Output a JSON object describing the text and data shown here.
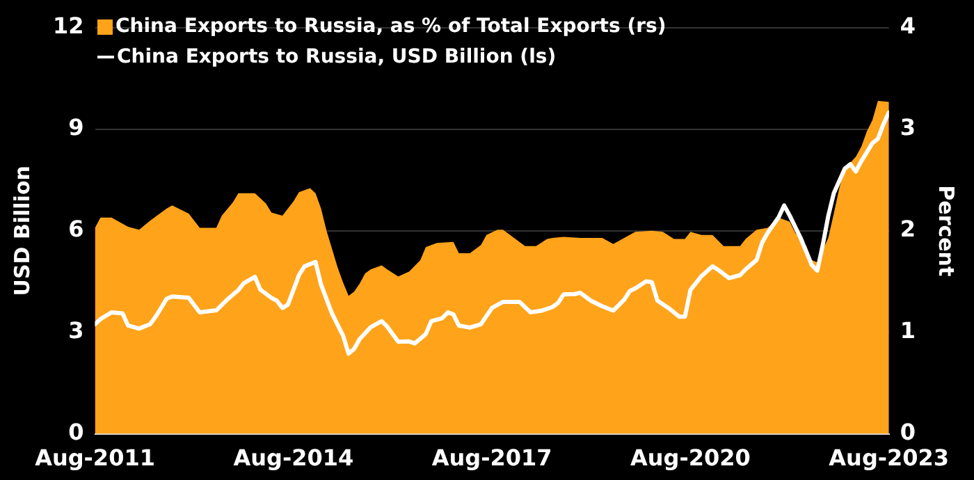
{
  "chart_data": {
    "type": "line",
    "xlim": [
      "2011-08",
      "2023-08"
    ],
    "xticks": [
      {
        "value": "2011-08",
        "label": "Aug-2011"
      },
      {
        "value": "2014-08",
        "label": "Aug-2014"
      },
      {
        "value": "2017-08",
        "label": "Aug-2017"
      },
      {
        "value": "2020-08",
        "label": "Aug-2020"
      },
      {
        "value": "2023-08",
        "label": "Aug-2023"
      }
    ],
    "ylabel": "USD Billion",
    "y2label": "Percent",
    "ylim": [
      0,
      12
    ],
    "yticks": [
      0,
      3,
      6,
      9,
      12
    ],
    "y2lim": [
      0,
      4
    ],
    "y2ticks": [
      0,
      1,
      2,
      3,
      4
    ],
    "grid": "y",
    "legend": "top left",
    "marker": "none",
    "series": [
      {
        "name": "China Exports to Russia, as % of Total Exports (rs)",
        "type": "area",
        "axis": "y2",
        "color": "#ffa31a",
        "x": [
          "2011-08",
          "2011-09",
          "2011-11",
          "2012-02",
          "2012-04",
          "2012-06",
          "2012-09",
          "2012-10",
          "2013-01",
          "2013-03",
          "2013-06",
          "2013-07",
          "2013-09",
          "2013-10",
          "2014-01",
          "2014-03",
          "2014-04",
          "2014-06",
          "2014-08",
          "2014-09",
          "2014-11",
          "2014-12",
          "2015-01",
          "2015-02",
          "2015-03",
          "2015-04",
          "2015-05",
          "2015-06",
          "2015-07",
          "2015-08",
          "2015-09",
          "2015-10",
          "2015-12",
          "2016-01",
          "2016-03",
          "2016-05",
          "2016-07",
          "2016-08",
          "2016-10",
          "2017-01",
          "2017-02",
          "2017-04",
          "2017-06",
          "2017-07",
          "2017-09",
          "2017-10",
          "2017-12",
          "2018-02",
          "2018-04",
          "2018-06",
          "2018-07",
          "2018-09",
          "2018-12",
          "2019-04",
          "2019-06",
          "2019-08",
          "2019-10",
          "2020-01",
          "2020-03",
          "2020-05",
          "2020-07",
          "2020-08",
          "2020-10",
          "2020-12",
          "2021-02",
          "2021-05",
          "2021-06",
          "2021-08",
          "2021-10",
          "2021-12",
          "2022-02",
          "2022-03",
          "2022-05",
          "2022-06",
          "2022-07",
          "2022-09",
          "2022-10",
          "2022-11",
          "2022-12",
          "2023-02",
          "2023-03",
          "2023-04",
          "2023-05",
          "2023-06",
          "2023-08"
        ],
        "values": [
          2.03,
          2.13,
          2.13,
          2.04,
          2.01,
          2.1,
          2.22,
          2.25,
          2.17,
          2.03,
          2.03,
          2.15,
          2.28,
          2.37,
          2.37,
          2.27,
          2.18,
          2.15,
          2.29,
          2.38,
          2.42,
          2.37,
          2.22,
          2.0,
          1.82,
          1.64,
          1.49,
          1.36,
          1.4,
          1.48,
          1.58,
          1.62,
          1.66,
          1.62,
          1.55,
          1.6,
          1.71,
          1.84,
          1.88,
          1.89,
          1.78,
          1.78,
          1.86,
          1.96,
          2.01,
          2.01,
          1.93,
          1.85,
          1.85,
          1.92,
          1.93,
          1.94,
          1.93,
          1.93,
          1.87,
          1.93,
          1.99,
          2.0,
          1.99,
          1.92,
          1.92,
          1.99,
          1.96,
          1.96,
          1.85,
          1.85,
          1.92,
          2.01,
          2.03,
          2.13,
          2.09,
          1.98,
          1.85,
          1.71,
          1.69,
          1.93,
          2.17,
          2.42,
          2.61,
          2.73,
          2.83,
          2.98,
          3.09,
          3.28,
          3.27
        ]
      },
      {
        "name": "China Exports to Russia, USD Billion (ls)",
        "type": "line",
        "color": "#ffffff",
        "x": [
          "2011-08",
          "2011-09",
          "2011-11",
          "2012-01",
          "2012-02",
          "2012-04",
          "2012-06",
          "2012-07",
          "2012-09",
          "2012-10",
          "2013-01",
          "2013-03",
          "2013-06",
          "2013-08",
          "2013-10",
          "2013-11",
          "2014-01",
          "2014-02",
          "2014-04",
          "2014-05",
          "2014-06",
          "2014-07",
          "2014-09",
          "2014-10",
          "2014-12",
          "2015-01",
          "2015-03",
          "2015-05",
          "2015-06",
          "2015-07",
          "2015-08",
          "2015-10",
          "2015-12",
          "2016-01",
          "2016-03",
          "2016-05",
          "2016-06",
          "2016-08",
          "2016-09",
          "2016-11",
          "2016-12",
          "2017-01",
          "2017-02",
          "2017-04",
          "2017-06",
          "2017-08",
          "2017-10",
          "2018-01",
          "2018-03",
          "2018-05",
          "2018-07",
          "2018-08",
          "2018-09",
          "2018-11",
          "2018-12",
          "2019-02",
          "2019-04",
          "2019-06",
          "2019-08",
          "2019-09",
          "2019-10",
          "2019-12",
          "2020-01",
          "2020-02",
          "2020-04",
          "2020-06",
          "2020-07",
          "2020-08",
          "2020-10",
          "2020-12",
          "2021-01",
          "2021-03",
          "2021-05",
          "2021-06",
          "2021-08",
          "2021-09",
          "2021-10",
          "2021-12",
          "2022-01",
          "2022-02",
          "2022-04",
          "2022-06",
          "2022-07",
          "2022-08",
          "2022-09",
          "2022-10",
          "2022-12",
          "2023-01",
          "2023-02",
          "2023-03",
          "2023-05",
          "2023-06",
          "2023-07",
          "2023-08"
        ],
        "values": [
          3.24,
          3.39,
          3.59,
          3.56,
          3.2,
          3.11,
          3.24,
          3.46,
          3.99,
          4.06,
          4.02,
          3.59,
          3.65,
          3.97,
          4.25,
          4.45,
          4.64,
          4.26,
          4.02,
          3.93,
          3.72,
          3.82,
          4.69,
          4.95,
          5.08,
          4.41,
          3.55,
          2.9,
          2.37,
          2.51,
          2.8,
          3.15,
          3.33,
          3.17,
          2.72,
          2.73,
          2.67,
          2.95,
          3.33,
          3.42,
          3.59,
          3.53,
          3.2,
          3.14,
          3.24,
          3.72,
          3.9,
          3.9,
          3.59,
          3.64,
          3.75,
          3.87,
          4.12,
          4.13,
          4.17,
          3.93,
          3.77,
          3.64,
          3.97,
          4.22,
          4.3,
          4.51,
          4.48,
          3.94,
          3.72,
          3.46,
          3.46,
          4.25,
          4.66,
          4.95,
          4.85,
          4.6,
          4.69,
          4.86,
          5.14,
          5.65,
          5.94,
          6.4,
          6.75,
          6.45,
          5.78,
          4.99,
          4.82,
          5.58,
          6.44,
          7.11,
          7.84,
          7.97,
          7.75,
          8.06,
          8.59,
          8.72,
          9.15,
          9.5
        ]
      }
    ]
  }
}
